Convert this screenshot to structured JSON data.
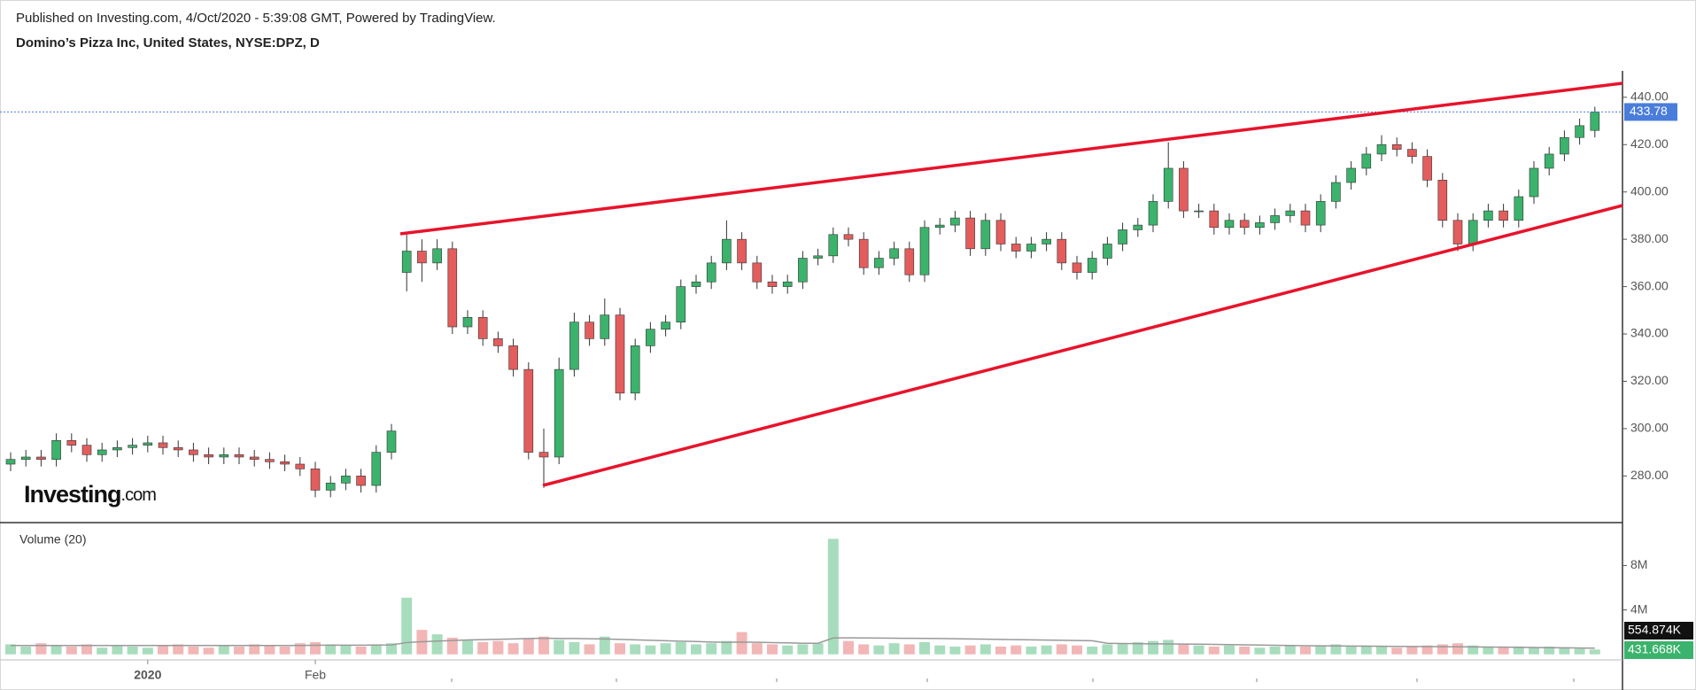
{
  "header": {
    "published": "Published on Investing.com, 4/Oct/2020 - 5:39:08 GMT, Powered by TradingView.",
    "logo": "Investing",
    "logo_suffix": ".com"
  },
  "chart_data": {
    "type": "candlestick",
    "title": "Domino’s Pizza Inc, United States, NYSE:DPZ, D",
    "up_color": "#3bb36c",
    "down_color": "#e35d5d",
    "categories": [
      null,
      null,
      null,
      null,
      null,
      null,
      null,
      null,
      null,
      "2020",
      null,
      null,
      null,
      null,
      null,
      null,
      null,
      null,
      null,
      null,
      "Feb",
      null,
      null,
      null,
      null,
      null,
      null,
      null,
      null,
      null,
      null,
      null,
      null,
      null,
      null,
      null,
      null,
      null,
      null,
      null,
      null,
      null,
      null,
      null,
      null,
      null,
      null,
      null,
      null,
      null,
      null,
      null,
      null,
      null,
      null,
      null,
      null,
      null,
      null,
      null,
      null,
      null,
      null,
      null,
      null,
      null,
      null,
      null,
      null,
      null,
      null,
      null,
      null,
      null,
      null,
      null,
      null,
      null,
      null,
      null,
      null,
      null,
      null,
      null,
      null,
      null,
      null,
      null,
      null,
      null,
      null,
      null,
      null,
      null,
      null,
      null,
      null,
      null,
      null,
      null,
      null,
      null,
      null,
      null,
      null
    ],
    "open": [
      285,
      287,
      288,
      287,
      295,
      293,
      289,
      291,
      292,
      293,
      294,
      292,
      291,
      289,
      288,
      289,
      288,
      287,
      286,
      285,
      283,
      274,
      277,
      280,
      276,
      290,
      366,
      375,
      370,
      376,
      343,
      347,
      338,
      335,
      325,
      290,
      288,
      325,
      345,
      338,
      348,
      315,
      335,
      342,
      345,
      360,
      362,
      370,
      380,
      370,
      362,
      360,
      362,
      372,
      373,
      382,
      380,
      368,
      372,
      376,
      365,
      385,
      386,
      389,
      376,
      388,
      378,
      375,
      378,
      380,
      370,
      366,
      372,
      378,
      384,
      386,
      396,
      410,
      392,
      392,
      385,
      388,
      385,
      387,
      390,
      392,
      386,
      396,
      404,
      410,
      416,
      420,
      418,
      415,
      405,
      388,
      378,
      388,
      392,
      388,
      398,
      410,
      416,
      423,
      426
    ],
    "high": [
      290,
      291,
      291,
      298,
      298,
      296,
      294,
      295,
      296,
      297,
      297,
      295,
      294,
      292,
      292,
      292,
      291,
      290,
      289,
      288,
      286,
      280,
      283,
      283,
      293,
      302,
      382,
      380,
      380,
      379,
      350,
      350,
      341,
      338,
      328,
      300,
      330,
      349,
      348,
      355,
      351,
      338,
      345,
      348,
      363,
      365,
      373,
      388,
      383,
      373,
      365,
      365,
      375,
      376,
      385,
      385,
      383,
      375,
      379,
      379,
      388,
      389,
      392,
      392,
      391,
      391,
      381,
      381,
      383,
      383,
      373,
      375,
      381,
      387,
      389,
      399,
      421,
      413,
      395,
      395,
      391,
      391,
      390,
      393,
      395,
      395,
      399,
      407,
      413,
      419,
      424,
      423,
      421,
      418,
      408,
      391,
      391,
      395,
      395,
      401,
      413,
      419,
      426,
      431,
      436
    ],
    "low": [
      282,
      284,
      284,
      284,
      290,
      286,
      286,
      288,
      289,
      290,
      289,
      288,
      286,
      285,
      285,
      285,
      284,
      283,
      282,
      280,
      271,
      271,
      274,
      273,
      273,
      287,
      358,
      362,
      367,
      340,
      340,
      335,
      332,
      322,
      287,
      275,
      285,
      322,
      335,
      335,
      312,
      312,
      332,
      339,
      342,
      357,
      359,
      367,
      367,
      359,
      357,
      357,
      359,
      369,
      370,
      377,
      365,
      365,
      369,
      362,
      362,
      382,
      383,
      373,
      373,
      375,
      372,
      372,
      375,
      367,
      363,
      363,
      369,
      375,
      381,
      383,
      393,
      389,
      389,
      382,
      382,
      382,
      382,
      384,
      387,
      383,
      383,
      393,
      401,
      407,
      413,
      415,
      412,
      402,
      385,
      375,
      375,
      385,
      385,
      385,
      395,
      407,
      413,
      420,
      423
    ],
    "close": [
      287,
      288,
      287,
      295,
      293,
      289,
      291,
      292,
      293,
      294,
      292,
      291,
      289,
      288,
      289,
      288,
      287,
      286,
      285,
      283,
      274,
      277,
      280,
      276,
      290,
      299,
      375,
      370,
      376,
      343,
      347,
      338,
      335,
      325,
      290,
      288,
      325,
      345,
      338,
      348,
      315,
      335,
      342,
      345,
      360,
      362,
      370,
      380,
      370,
      362,
      360,
      362,
      372,
      373,
      382,
      380,
      368,
      372,
      376,
      365,
      385,
      386,
      389,
      376,
      388,
      378,
      375,
      378,
      380,
      370,
      366,
      372,
      378,
      384,
      386,
      396,
      410,
      392,
      392,
      385,
      388,
      385,
      387,
      390,
      392,
      386,
      396,
      404,
      410,
      416,
      420,
      418,
      415,
      405,
      388,
      378,
      388,
      392,
      388,
      398,
      410,
      416,
      423,
      428,
      433.78
    ],
    "ylim": [
      260.3,
      449.1
    ],
    "yticks": [
      {
        "value": 280,
        "label": "280.00"
      },
      {
        "value": 300,
        "label": "300.00"
      },
      {
        "value": 320,
        "label": "320.00"
      },
      {
        "value": 340,
        "label": "340.00"
      },
      {
        "value": 360,
        "label": "360.00"
      },
      {
        "value": 380,
        "label": "380.00"
      },
      {
        "value": 400,
        "label": "400.00"
      },
      {
        "value": 420,
        "label": "420.00"
      },
      {
        "value": 440,
        "label": "440.00"
      }
    ],
    "volume": {
      "name": "Volume (20)",
      "color_ma": "#999999",
      "values": [
        900000,
        700000,
        1000000,
        800000,
        700000,
        900000,
        600000,
        800000,
        700000,
        600000,
        800000,
        900000,
        700000,
        600000,
        800000,
        700000,
        900000,
        800000,
        700000,
        1000000,
        1100000,
        900000,
        800000,
        700000,
        900000,
        1000000,
        5100000,
        2200000,
        1800000,
        1500000,
        1300000,
        1100000,
        1200000,
        1000000,
        1400000,
        1600000,
        1300000,
        1100000,
        900000,
        1600000,
        1000000,
        900000,
        800000,
        1000000,
        1100000,
        900000,
        1000000,
        1200000,
        2000000,
        1000000,
        900000,
        800000,
        900000,
        1000000,
        10400000,
        1200000,
        900000,
        800000,
        1000000,
        900000,
        1100000,
        800000,
        700000,
        800000,
        900000,
        700000,
        800000,
        700000,
        800000,
        900000,
        800000,
        700000,
        900000,
        1000000,
        1100000,
        1200000,
        1300000,
        900000,
        800000,
        700000,
        800000,
        700000,
        600000,
        700000,
        800000,
        700000,
        800000,
        900000,
        700000,
        800000,
        700000,
        600000,
        700000,
        800000,
        900000,
        1000000,
        800000,
        700000,
        600000,
        700000,
        600000,
        700000,
        600000,
        500000,
        431668
      ],
      "ma": [
        800000,
        800000,
        800000,
        800000,
        800000,
        800000,
        800000,
        800000,
        800000,
        800000,
        800000,
        800000,
        800000,
        800000,
        800000,
        800000,
        800000,
        800000,
        800000,
        800000,
        820000,
        830000,
        830000,
        830000,
        840000,
        850000,
        1060000,
        1130000,
        1190000,
        1240000,
        1290000,
        1320000,
        1350000,
        1380000,
        1420000,
        1440000,
        1430000,
        1420000,
        1400000,
        1380000,
        1340000,
        1300000,
        1260000,
        1220000,
        1180000,
        1150000,
        1100000,
        1080000,
        1100000,
        1080000,
        1050000,
        1030000,
        1000000,
        1000000,
        1470000,
        1480000,
        1470000,
        1460000,
        1450000,
        1440000,
        1430000,
        1420000,
        1400000,
        1380000,
        1360000,
        1340000,
        1320000,
        1300000,
        1280000,
        1260000,
        1240000,
        1220000,
        1000000,
        980000,
        960000,
        950000,
        940000,
        930000,
        920000,
        900000,
        880000,
        860000,
        840000,
        820000,
        800000,
        780000,
        770000,
        760000,
        750000,
        740000,
        730000,
        720000,
        710000,
        700000,
        690000,
        680000,
        670000,
        660000,
        650000,
        640000,
        620000,
        600000,
        590000,
        570000,
        554874
      ],
      "ma_label": "554.874K",
      "last_label": "431.668K",
      "ylim": [
        -500000,
        11700000
      ],
      "yticks": [
        {
          "value": 4000000,
          "label": "4M"
        },
        {
          "value": 8000000,
          "label": "8M"
        }
      ]
    }
  }
}
